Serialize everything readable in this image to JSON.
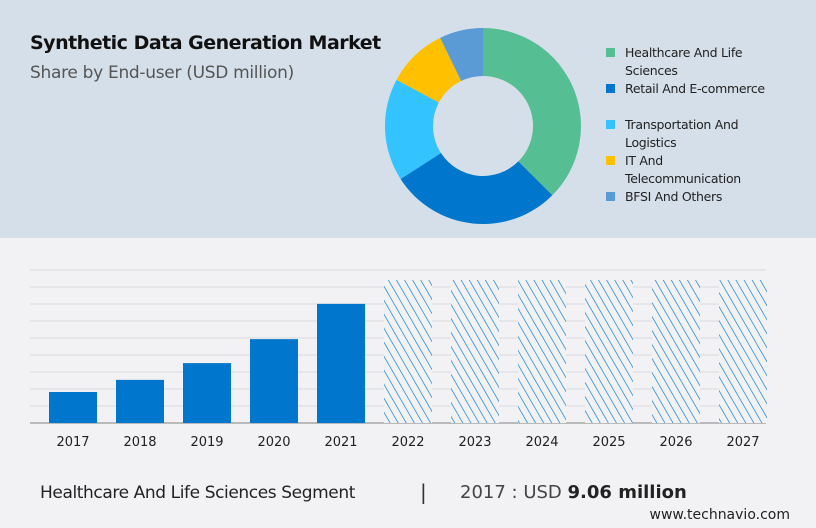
{
  "header": {
    "title": "Synthetic Data Generation Market",
    "subtitle": "Share by End-user (USD million)"
  },
  "chart_data": [
    {
      "type": "pie",
      "donut": true,
      "categories": [
        "Healthcare And Life Sciences",
        "Retail And E-commerce",
        "Transportation And Logistics",
        "IT And Telecommunication",
        "BFSI And Others"
      ],
      "values": [
        37.5,
        28.4,
        16.9,
        10.0,
        7.2
      ],
      "colors": [
        "#55bf93",
        "#0077cc",
        "#33c3ff",
        "#ffc000",
        "#5b9bd5"
      ],
      "legend_position": "right"
    },
    {
      "type": "bar",
      "categories": [
        "2017",
        "2018",
        "2019",
        "2020",
        "2021",
        "2022",
        "2023",
        "2024",
        "2025",
        "2026",
        "2027"
      ],
      "values": [
        9.06,
        12.6,
        17.5,
        24.5,
        34.8,
        null,
        null,
        null,
        null,
        null,
        null
      ],
      "forecast": [
        false,
        false,
        false,
        false,
        false,
        true,
        true,
        true,
        true,
        true,
        true
      ],
      "ylim": [
        0,
        44.7
      ],
      "grid": true,
      "bar_color": "#0077cc"
    }
  ],
  "footer": {
    "segment": "Healthcare And Life Sciences Segment",
    "separator": "|",
    "year_label": "2017 : USD",
    "value": "9.06 million",
    "site": "www.technavio.com"
  }
}
